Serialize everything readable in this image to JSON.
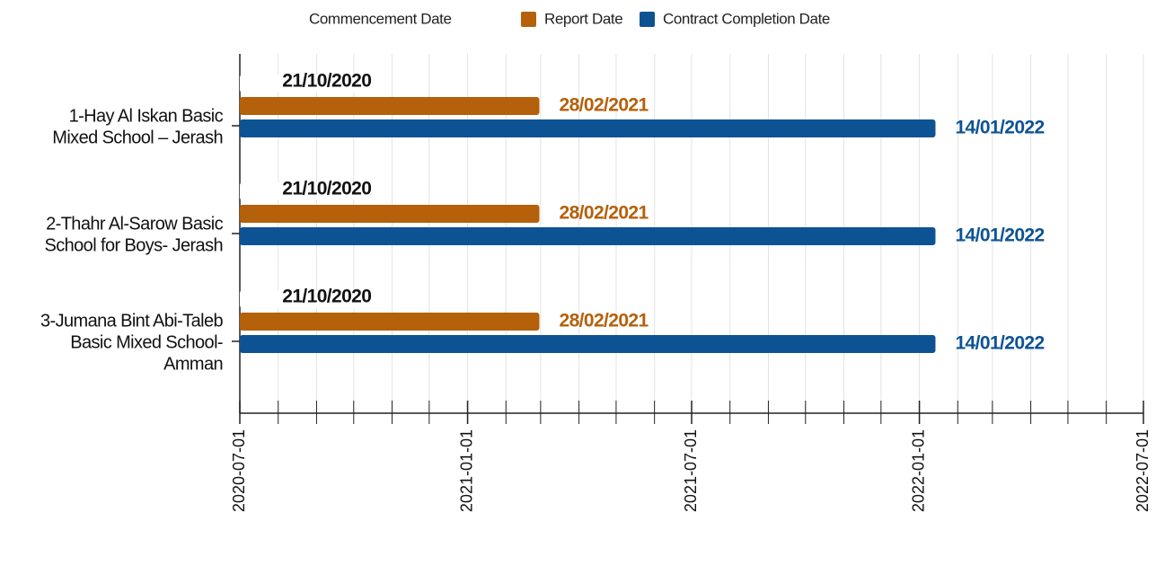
{
  "chart_data": {
    "type": "bar",
    "orientation": "horizontal",
    "categories": [
      [
        "1-Hay Al Iskan Basic",
        "Mixed School – Jerash"
      ],
      [
        "2-Thahr Al-Sarow Basic",
        "School for Boys- Jerash"
      ],
      [
        "3-Jumana Bint Abi-Taleb",
        "Basic Mixed School-",
        "Amman"
      ]
    ],
    "series": [
      {
        "name": "Commencement Date",
        "color": "#ffffff",
        "label_color": "#111111",
        "values": [
          "2020-10-21",
          "2020-10-21",
          "2020-10-21"
        ],
        "value_labels": [
          "21/10/2020",
          "21/10/2020",
          "21/10/2020"
        ]
      },
      {
        "name": "Report Date",
        "color": "#b5600a",
        "label_color": "#b5600a",
        "values": [
          "2021-02-28",
          "2021-02-28",
          "2021-02-28"
        ],
        "value_labels": [
          "28/02/2021",
          "28/02/2021",
          "28/02/2021"
        ]
      },
      {
        "name": "Contract Completion Date",
        "color": "#0d5394",
        "label_color": "#0d5394",
        "values": [
          "2022-01-14",
          "2022-01-14",
          "2022-01-14"
        ],
        "value_labels": [
          "14/01/2022",
          "14/01/2022",
          "14/01/2022"
        ]
      }
    ],
    "xlim": [
      "2020-07-01",
      "2022-07-01"
    ],
    "xticks": [
      "2020-07-01",
      "2021-01-01",
      "2021-07-01",
      "2022-01-01",
      "2022-07-01"
    ],
    "grid": "monthly",
    "legend": "top"
  }
}
